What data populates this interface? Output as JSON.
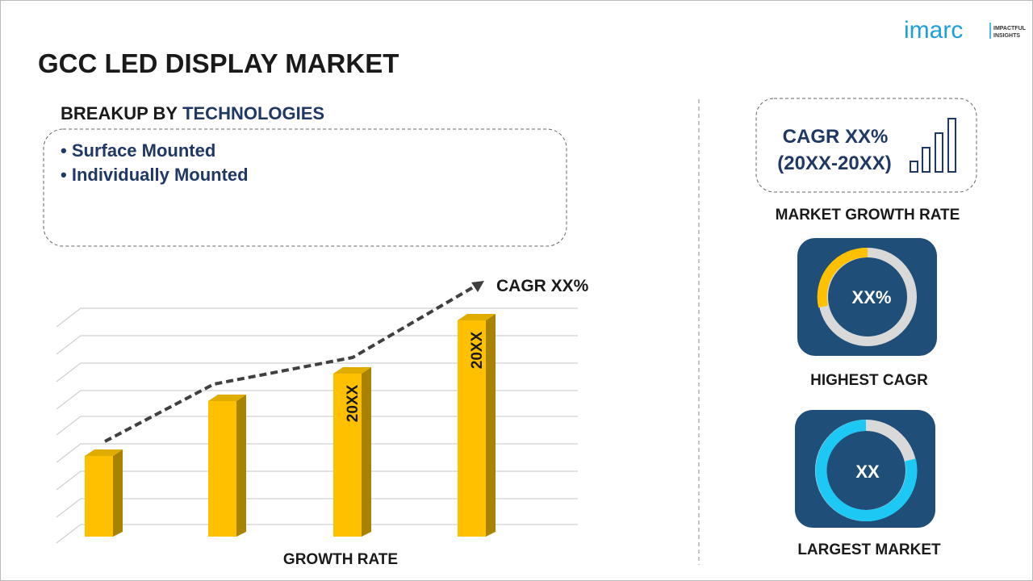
{
  "header": {
    "logo": "imarc",
    "logo_tagline": [
      "IMPACTFUL",
      "INSIGHTS"
    ],
    "title": "GCC LED DISPLAY MARKET"
  },
  "breakup": {
    "label": "BREAKUP BY",
    "category": "TECHNOLOGIES",
    "items": [
      "Surface Mounted",
      "Individually Mounted"
    ]
  },
  "growth_chart": {
    "annotation": "CAGR XX%",
    "bar_labels": [
      "20XX",
      "20XX"
    ],
    "axis_label": "GROWTH RATE"
  },
  "market_growth": {
    "value": "CAGR XX%",
    "period": "(20XX-20XX)",
    "label": "MARKET GROWTH RATE"
  },
  "highest_cagr": {
    "value": "XX%",
    "label": "HIGHEST CAGR"
  },
  "largest_market": {
    "value": "XX",
    "label": "LARGEST MARKET"
  }
}
